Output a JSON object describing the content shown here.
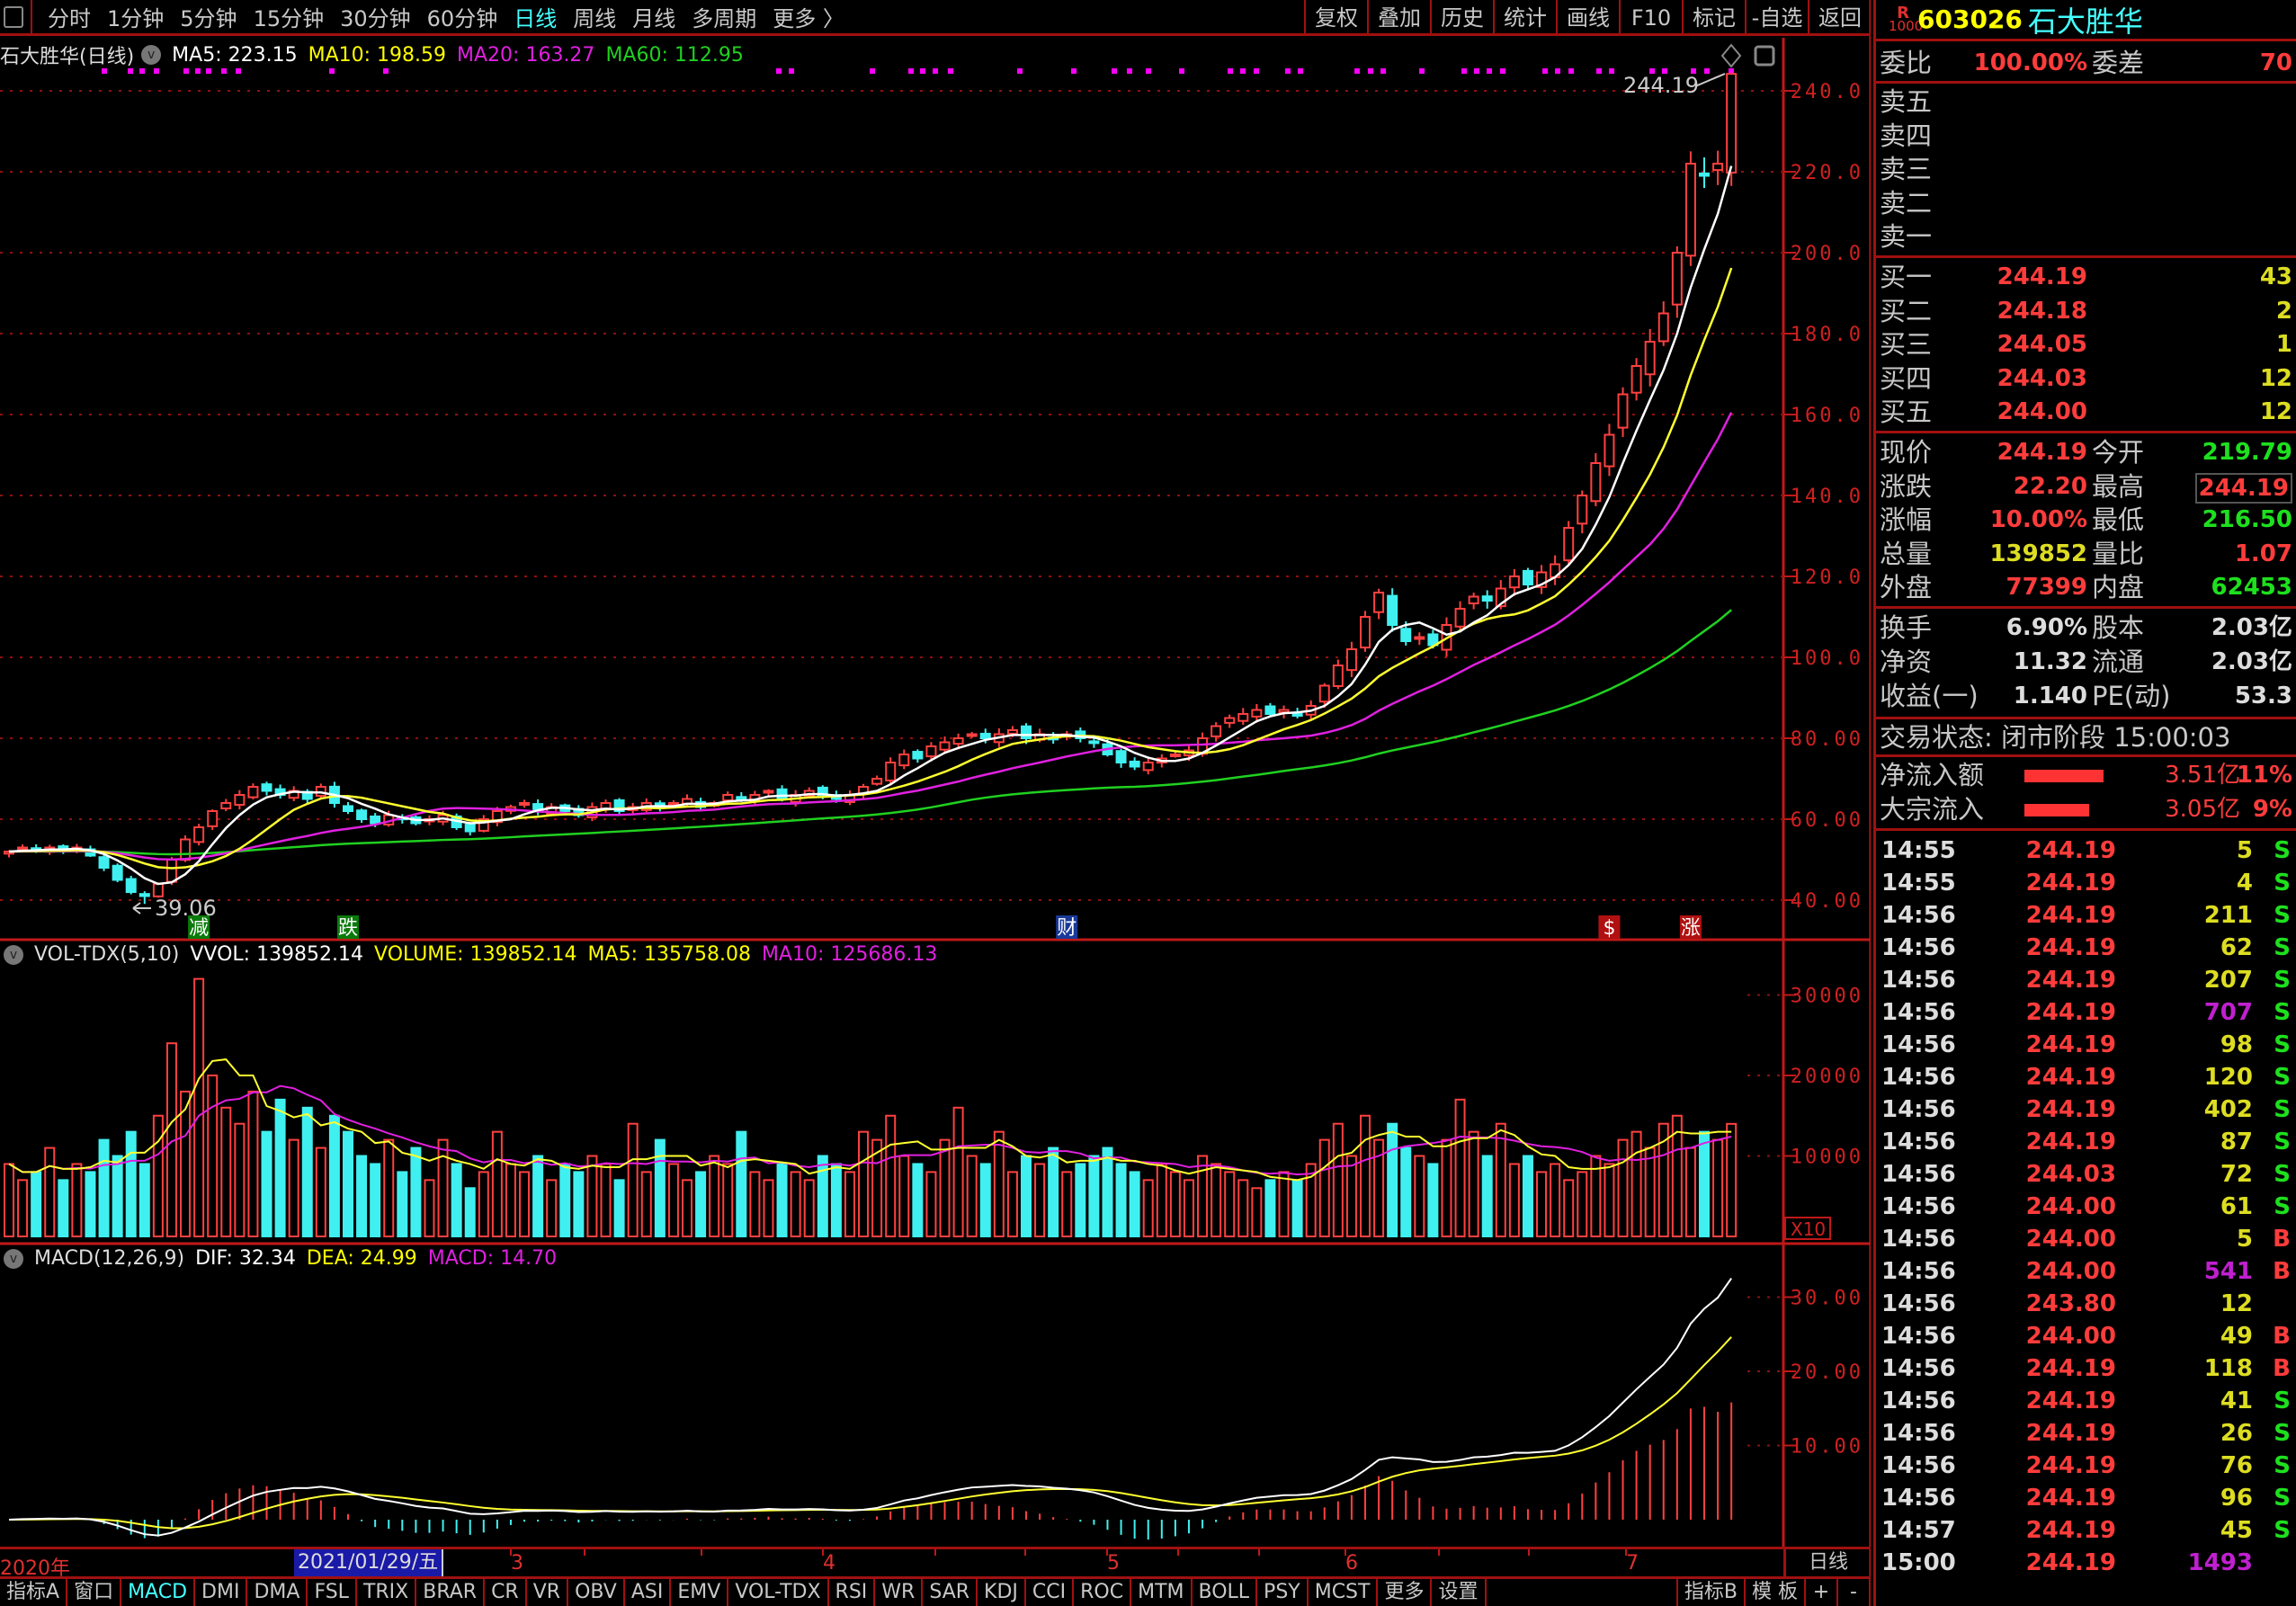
{
  "toolbar": {
    "periods": [
      {
        "label": "分时"
      },
      {
        "label": "1分钟"
      },
      {
        "label": "5分钟"
      },
      {
        "label": "15分钟"
      },
      {
        "label": "30分钟"
      },
      {
        "label": "60分钟"
      },
      {
        "label": "日线",
        "active": true
      },
      {
        "label": "周线"
      },
      {
        "label": "月线"
      },
      {
        "label": "多周期"
      },
      {
        "label": "更多 〉"
      }
    ],
    "actions": [
      {
        "label": "复权"
      },
      {
        "label": "叠加"
      },
      {
        "label": "历史"
      },
      {
        "label": "统计"
      },
      {
        "label": "画线"
      },
      {
        "label": "F10"
      },
      {
        "label": "标记"
      },
      {
        "label": "-自选"
      },
      {
        "label": "返回"
      }
    ]
  },
  "main_legend": {
    "title": "石大胜华(日线)",
    "ma5": "MA5: 223.15",
    "ma10": "MA10: 198.59",
    "ma20": "MA20: 163.27",
    "ma60": "MA60: 112.95"
  },
  "vol_legend": {
    "name": "VOL-TDX(5,10)",
    "vvol": "VVOL: 139852.14",
    "volume": "VOLUME: 139852.14",
    "ma5": "MA5: 135758.08",
    "ma10": "MA10: 125686.13"
  },
  "macd_legend": {
    "name": "MACD(12,26,9)",
    "dif": "DIF: 32.34",
    "dea": "DEA: 24.99",
    "macd": "MACD: 14.70"
  },
  "colors": {
    "up": "#ff4040",
    "down": "#40f0f0",
    "ma5": "#ffffff",
    "ma10": "#ffff30",
    "ma20": "#e020e0",
    "ma60": "#20d020",
    "axis": "#c01818",
    "grid": "#901010"
  },
  "chart_data": {
    "type": "candlestick",
    "price_axis": {
      "ticks": [
        "240.0",
        "220.0",
        "200.0",
        "180.0",
        "160.0",
        "140.0",
        "120.0",
        "100.0",
        "80.00",
        "60.00",
        "40.00"
      ],
      "values": [
        240,
        220,
        200,
        180,
        160,
        140,
        120,
        100,
        80,
        60,
        40
      ]
    },
    "volume_axis": {
      "ticks": [
        "30000",
        "20000",
        "10000"
      ],
      "values": [
        30000,
        20000,
        10000
      ],
      "unit_label": "X10"
    },
    "macd_axis": {
      "ticks": [
        "30.00",
        "20.00",
        "10.00"
      ],
      "values": [
        30,
        20,
        10
      ]
    },
    "high_label": "244.19",
    "low_label": "39.06",
    "last_candle": {
      "open": 219.79,
      "high": 244.19,
      "low": 216.5,
      "close": 244.19
    },
    "low_candle_index": 10,
    "closes": [
      52,
      53,
      52.5,
      53,
      52,
      53,
      51,
      48,
      45,
      42,
      41,
      44,
      50,
      55,
      58,
      62,
      64,
      66,
      68,
      67,
      66,
      67,
      65,
      68,
      64,
      62,
      60,
      59,
      61,
      60,
      59,
      60,
      61,
      58,
      57,
      60,
      62,
      63,
      64,
      62,
      63,
      62,
      61,
      63,
      64,
      62,
      63,
      64,
      63,
      64,
      65,
      63,
      64,
      66,
      65,
      66,
      67,
      65,
      66,
      67,
      66,
      65,
      66,
      68,
      70,
      74,
      76,
      75,
      78,
      79,
      80,
      81,
      80,
      81,
      82,
      80,
      81,
      80,
      81,
      80,
      79,
      76,
      74,
      73,
      74,
      75,
      76,
      77,
      80,
      83,
      85,
      86,
      87,
      86,
      87,
      86,
      88,
      93,
      98,
      102,
      110,
      116,
      108,
      104,
      105,
      103,
      108,
      112,
      115,
      114,
      117,
      120,
      118,
      121,
      123,
      132,
      140,
      148,
      155,
      165,
      172,
      178,
      185,
      200,
      222,
      219,
      221.99,
      244.19
    ],
    "volumes": [
      9000,
      7000,
      8000,
      11000,
      7000,
      9000,
      8000,
      12000,
      10000,
      13000,
      9000,
      15000,
      24000,
      18000,
      32000,
      20000,
      16000,
      14000,
      18000,
      13000,
      17000,
      12000,
      16000,
      11000,
      15000,
      13000,
      10000,
      9000,
      12000,
      8000,
      11000,
      7000,
      12000,
      9000,
      6000,
      8000,
      13000,
      9000,
      8000,
      10000,
      7000,
      9000,
      8000,
      10000,
      9000,
      7000,
      14000,
      8000,
      12000,
      9000,
      7000,
      8000,
      10000,
      9000,
      13000,
      8000,
      7000,
      9000,
      8000,
      7000,
      10000,
      9000,
      8000,
      13000,
      12000,
      15000,
      10000,
      9000,
      8000,
      12000,
      16000,
      10000,
      9000,
      13000,
      8000,
      10000,
      9000,
      11000,
      8000,
      9000,
      10000,
      11000,
      9000,
      8000,
      7000,
      9000,
      8000,
      7000,
      10000,
      9000,
      8000,
      7000,
      6000,
      7000,
      8000,
      7000,
      9000,
      12000,
      14000,
      10000,
      15000,
      12000,
      14000,
      11000,
      10000,
      9000,
      12000,
      17000,
      13000,
      10000,
      14000,
      9000,
      10000,
      8000,
      9000,
      7000,
      8000,
      10000,
      9000,
      12000,
      13000,
      11000,
      14000,
      15000,
      11000,
      13000,
      12000,
      13985
    ],
    "event_markers": [
      {
        "label": "减",
        "index": 14,
        "color": "#0a7a0a"
      },
      {
        "label": "跌",
        "index": 25,
        "color": "#0a7a0a"
      },
      {
        "label": "财",
        "index": 78,
        "color": "#1a3a9a"
      },
      {
        "label": "$",
        "index": 118,
        "color": "#b01010"
      },
      {
        "label": "涨",
        "index": 124,
        "color": "#b01010"
      }
    ]
  },
  "date_axis": {
    "year": "2020年",
    "cursor_date": "2021/01/29/五",
    "months": [
      "3",
      "4",
      "5",
      "6",
      "7"
    ],
    "period": "日线"
  },
  "bottom_tabs": {
    "left": [
      "指标A",
      "窗口",
      "MACD",
      "DMI",
      "DMA",
      "FSL",
      "TRIX",
      "BRAR",
      "CR",
      "VR",
      "OBV",
      "ASI",
      "EMV",
      "VOL-TDX",
      "RSI",
      "WR",
      "SAR",
      "KDJ",
      "CCI",
      "ROC",
      "MTM",
      "BOLL",
      "PSY",
      "MCST",
      "更多",
      "设置"
    ],
    "active": "MACD",
    "right": [
      "指标B",
      "模 板",
      "+",
      "-"
    ]
  },
  "quote": {
    "badge_top": "R",
    "badge_bottom": "1000",
    "code": "603026",
    "name": "石大胜华",
    "weibi_label": "委比",
    "weibi": "100.00%",
    "weicha_label": "委差",
    "weicha": "70",
    "sell": [
      {
        "label": "卖五"
      },
      {
        "label": "卖四"
      },
      {
        "label": "卖三"
      },
      {
        "label": "卖二"
      },
      {
        "label": "卖一"
      }
    ],
    "buy": [
      {
        "label": "买一",
        "price": "244.19",
        "vol": "43"
      },
      {
        "label": "买二",
        "price": "244.18",
        "vol": "2"
      },
      {
        "label": "买三",
        "price": "244.05",
        "vol": "1"
      },
      {
        "label": "买四",
        "price": "244.03",
        "vol": "12"
      },
      {
        "label": "买五",
        "price": "244.00",
        "vol": "12"
      }
    ],
    "stats": [
      {
        "l1": "现价",
        "v1": "244.19",
        "c1": "red",
        "l2": "今开",
        "v2": "219.79",
        "c2": "grn"
      },
      {
        "l1": "涨跌",
        "v1": "22.20",
        "c1": "red",
        "l2": "最高",
        "v2": "244.19",
        "c2": "red",
        "boxed": true
      },
      {
        "l1": "涨幅",
        "v1": "10.00%",
        "c1": "red",
        "l2": "最低",
        "v2": "216.50",
        "c2": "grn"
      },
      {
        "l1": "总量",
        "v1": "139852",
        "c1": "yel",
        "l2": "量比",
        "v2": "1.07",
        "c2": "red"
      },
      {
        "l1": "外盘",
        "v1": "77399",
        "c1": "red",
        "l2": "内盘",
        "v2": "62453",
        "c2": "grn"
      }
    ],
    "finance": [
      {
        "l1": "换手",
        "v1": "6.90%",
        "l2": "股本",
        "v2": "2.03亿"
      },
      {
        "l1": "净资",
        "v1": "11.32",
        "l2": "流通",
        "v2": "2.03亿"
      },
      {
        "l1": "收益(一)",
        "v1": "1.140",
        "l2": "PE(动)",
        "v2": "53.3"
      }
    ],
    "status": "交易状态: 闭市阶段 15:00:03",
    "flows": [
      {
        "label": "净流入额",
        "amount": "3.51亿",
        "pct": "11%",
        "fill": 0.11
      },
      {
        "label": "大宗流入",
        "amount": "3.05亿",
        "pct": "9%",
        "fill": 0.09
      }
    ]
  },
  "ticks": [
    {
      "t": "14:55",
      "p": "244.19",
      "v": "5",
      "s": "S"
    },
    {
      "t": "14:55",
      "p": "244.19",
      "v": "4",
      "s": "S"
    },
    {
      "t": "14:56",
      "p": "244.19",
      "v": "211",
      "s": "S"
    },
    {
      "t": "14:56",
      "p": "244.19",
      "v": "62",
      "s": "S"
    },
    {
      "t": "14:56",
      "p": "244.19",
      "v": "207",
      "s": "S"
    },
    {
      "t": "14:56",
      "p": "244.19",
      "v": "707",
      "s": "S",
      "big": true
    },
    {
      "t": "14:56",
      "p": "244.19",
      "v": "98",
      "s": "S"
    },
    {
      "t": "14:56",
      "p": "244.19",
      "v": "120",
      "s": "S"
    },
    {
      "t": "14:56",
      "p": "244.19",
      "v": "402",
      "s": "S"
    },
    {
      "t": "14:56",
      "p": "244.19",
      "v": "87",
      "s": "S"
    },
    {
      "t": "14:56",
      "p": "244.03",
      "v": "72",
      "s": "S"
    },
    {
      "t": "14:56",
      "p": "244.00",
      "v": "61",
      "s": "S"
    },
    {
      "t": "14:56",
      "p": "244.00",
      "v": "5",
      "s": "B"
    },
    {
      "t": "14:56",
      "p": "244.00",
      "v": "541",
      "s": "B",
      "big": true
    },
    {
      "t": "14:56",
      "p": "243.80",
      "v": "12",
      "s": ""
    },
    {
      "t": "14:56",
      "p": "244.00",
      "v": "49",
      "s": "B"
    },
    {
      "t": "14:56",
      "p": "244.19",
      "v": "118",
      "s": "B"
    },
    {
      "t": "14:56",
      "p": "244.19",
      "v": "41",
      "s": "S"
    },
    {
      "t": "14:56",
      "p": "244.19",
      "v": "26",
      "s": "S"
    },
    {
      "t": "14:56",
      "p": "244.19",
      "v": "76",
      "s": "S"
    },
    {
      "t": "14:56",
      "p": "244.19",
      "v": "96",
      "s": "S"
    },
    {
      "t": "14:57",
      "p": "244.19",
      "v": "45",
      "s": "S"
    },
    {
      "t": "15:00",
      "p": "244.19",
      "v": "1493",
      "s": "",
      "big": true
    }
  ]
}
